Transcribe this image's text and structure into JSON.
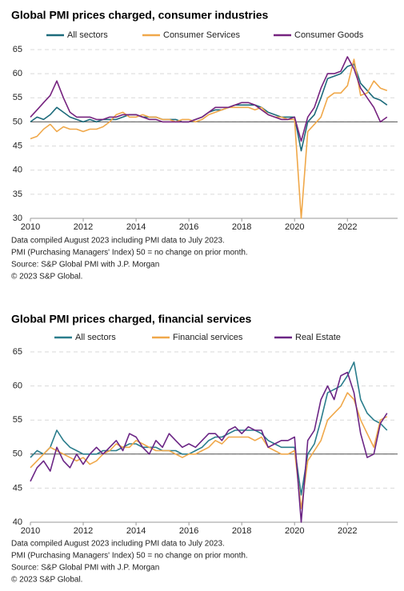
{
  "chart_data": [
    {
      "type": "line",
      "title": "Global PMI prices charged, consumer industries",
      "x": [
        2010,
        2010.25,
        2010.5,
        2010.75,
        2011,
        2011.25,
        2011.5,
        2011.75,
        2012,
        2012.25,
        2012.5,
        2012.75,
        2013,
        2013.25,
        2013.5,
        2013.75,
        2014,
        2014.25,
        2014.5,
        2014.75,
        2015,
        2015.25,
        2015.5,
        2015.75,
        2016,
        2016.25,
        2016.5,
        2016.75,
        2017,
        2017.25,
        2017.5,
        2017.75,
        2018,
        2018.25,
        2018.5,
        2018.75,
        2019,
        2019.25,
        2019.5,
        2019.75,
        2020,
        2020.25,
        2020.5,
        2020.75,
        2021,
        2021.25,
        2021.5,
        2021.75,
        2022,
        2022.25,
        2022.5,
        2022.75,
        2023,
        2023.25,
        2023.5
      ],
      "series": [
        {
          "name": "All sectors",
          "color": "#1d6b7b",
          "values": [
            50,
            51,
            50.5,
            51.5,
            53,
            52,
            51,
            50.5,
            50,
            50.5,
            50,
            50.5,
            50.5,
            50.5,
            51,
            51.5,
            51.5,
            51,
            51,
            51,
            50.5,
            50.5,
            50.5,
            50,
            50,
            50.5,
            51,
            52,
            52.5,
            52.5,
            53,
            53.5,
            53.5,
            53.5,
            53.5,
            53,
            52,
            51.5,
            51,
            51,
            51,
            44,
            50,
            51.5,
            55,
            59,
            59.5,
            60,
            61.5,
            62,
            58,
            56.5,
            55,
            54.5,
            53.5
          ]
        },
        {
          "name": "Consumer Services",
          "color": "#f0a84a",
          "values": [
            46.5,
            47,
            48.5,
            49.5,
            48,
            49,
            48.5,
            48.5,
            48,
            48.5,
            48.5,
            49,
            50,
            51.5,
            52,
            51,
            51,
            51.5,
            51,
            51,
            50.5,
            50.5,
            50,
            50.5,
            50.5,
            50,
            50.5,
            51.5,
            52,
            52.5,
            53,
            53,
            53,
            53,
            52.5,
            53,
            51.5,
            51,
            51,
            50.5,
            50.5,
            30,
            48,
            49.5,
            51,
            55,
            56,
            56,
            57.5,
            63,
            55.5,
            56,
            58.5,
            57,
            56.5
          ]
        },
        {
          "name": "Consumer Goods",
          "color": "#76237f",
          "values": [
            51,
            52.5,
            54,
            55.5,
            58.5,
            55,
            52,
            51,
            51,
            51,
            50.5,
            50.5,
            51,
            51,
            51.5,
            51.5,
            51.5,
            51,
            50.5,
            50.5,
            50,
            50,
            50,
            50,
            50,
            50.5,
            51,
            52,
            53,
            53,
            53,
            53.5,
            54,
            54,
            53.5,
            52.5,
            51.5,
            51,
            50.5,
            50.5,
            51,
            46,
            51,
            53,
            57,
            60,
            60,
            60.5,
            63.5,
            61,
            57,
            55,
            53,
            50,
            51
          ]
        }
      ],
      "xlim": [
        2010,
        2023.9
      ],
      "xticks": [
        2010,
        2012,
        2014,
        2016,
        2018,
        2020,
        2022
      ],
      "ylim": [
        30,
        65
      ],
      "yticks": [
        30,
        35,
        40,
        45,
        50,
        55,
        60,
        65
      ],
      "grid": true,
      "reference_line": 50,
      "notes": [
        "Data compiled August 2023 including PMI data to July 2023.",
        "PMI (Purchasing Managers' Index) 50 = no change on prior month.",
        "Source: S&P Global PMI with J.P. Morgan",
        "© 2023 S&P Global."
      ]
    },
    {
      "type": "line",
      "title": "Global PMI prices charged, financial services",
      "x": [
        2010,
        2010.25,
        2010.5,
        2010.75,
        2011,
        2011.25,
        2011.5,
        2011.75,
        2012,
        2012.25,
        2012.5,
        2012.75,
        2013,
        2013.25,
        2013.5,
        2013.75,
        2014,
        2014.25,
        2014.5,
        2014.75,
        2015,
        2015.25,
        2015.5,
        2015.75,
        2016,
        2016.25,
        2016.5,
        2016.75,
        2017,
        2017.25,
        2017.5,
        2017.75,
        2018,
        2018.25,
        2018.5,
        2018.75,
        2019,
        2019.25,
        2019.5,
        2019.75,
        2020,
        2020.25,
        2020.5,
        2020.75,
        2021,
        2021.25,
        2021.5,
        2021.75,
        2022,
        2022.25,
        2022.5,
        2022.75,
        2023,
        2023.25,
        2023.5
      ],
      "series": [
        {
          "name": "All sectors",
          "color": "#2a7d8c",
          "values": [
            49.5,
            50.5,
            50,
            51,
            53.5,
            52,
            51,
            50.5,
            50,
            50,
            50,
            50.5,
            50.5,
            50.5,
            51,
            51.5,
            51.5,
            51,
            51,
            51,
            50.5,
            50.5,
            50.5,
            50,
            50,
            50.5,
            51,
            52,
            52.5,
            52.5,
            53,
            53.5,
            53.5,
            53.5,
            53.5,
            53,
            52,
            51.5,
            51,
            51,
            51,
            44,
            50,
            51.5,
            55,
            59,
            59.5,
            60,
            61.5,
            63.5,
            58,
            56,
            55,
            54.5,
            53.5
          ]
        },
        {
          "name": "Financial services",
          "color": "#f0a84a",
          "values": [
            48,
            49,
            50,
            51,
            50.5,
            50,
            49.5,
            49,
            49.5,
            48.5,
            49,
            50,
            50.5,
            51.5,
            51,
            51,
            52,
            51.5,
            51,
            50.5,
            50.5,
            50.5,
            50,
            49.5,
            50,
            50,
            50.5,
            51,
            52,
            51.5,
            52.5,
            52.5,
            52.5,
            52.5,
            52,
            52.5,
            51,
            50.5,
            50,
            50,
            50.5,
            42,
            49,
            50.5,
            52,
            55,
            56,
            57,
            59,
            58,
            55,
            53,
            51,
            55,
            55.5
          ]
        },
        {
          "name": "Real Estate",
          "color": "#6b2585",
          "values": [
            46,
            48,
            49,
            47.5,
            51,
            49,
            48,
            50,
            48.5,
            50,
            51,
            50,
            51,
            52,
            50.5,
            53,
            52.5,
            51,
            50,
            52,
            51,
            53,
            52,
            51,
            51.5,
            51,
            52,
            53,
            53,
            52,
            53.5,
            54,
            53,
            54,
            53.5,
            53.5,
            51,
            51.5,
            52,
            52,
            52.5,
            40,
            52,
            53.5,
            58,
            60,
            58,
            61.5,
            62,
            59,
            53,
            49.5,
            50,
            54.5,
            56
          ]
        }
      ],
      "xlim": [
        2010,
        2023.9
      ],
      "xticks": [
        2010,
        2012,
        2014,
        2016,
        2018,
        2020,
        2022
      ],
      "ylim": [
        40,
        65
      ],
      "yticks": [
        40,
        45,
        50,
        55,
        60,
        65
      ],
      "grid": true,
      "reference_line": 50,
      "notes": [
        "Data compiled August 2023 including PMI data to July 2023.",
        "PMI (Purchasing Managers' Index) 50 = no change on prior month.",
        "Source: S&P Global PMI with J.P. Morgan",
        "© 2023 S&P Global."
      ]
    }
  ]
}
